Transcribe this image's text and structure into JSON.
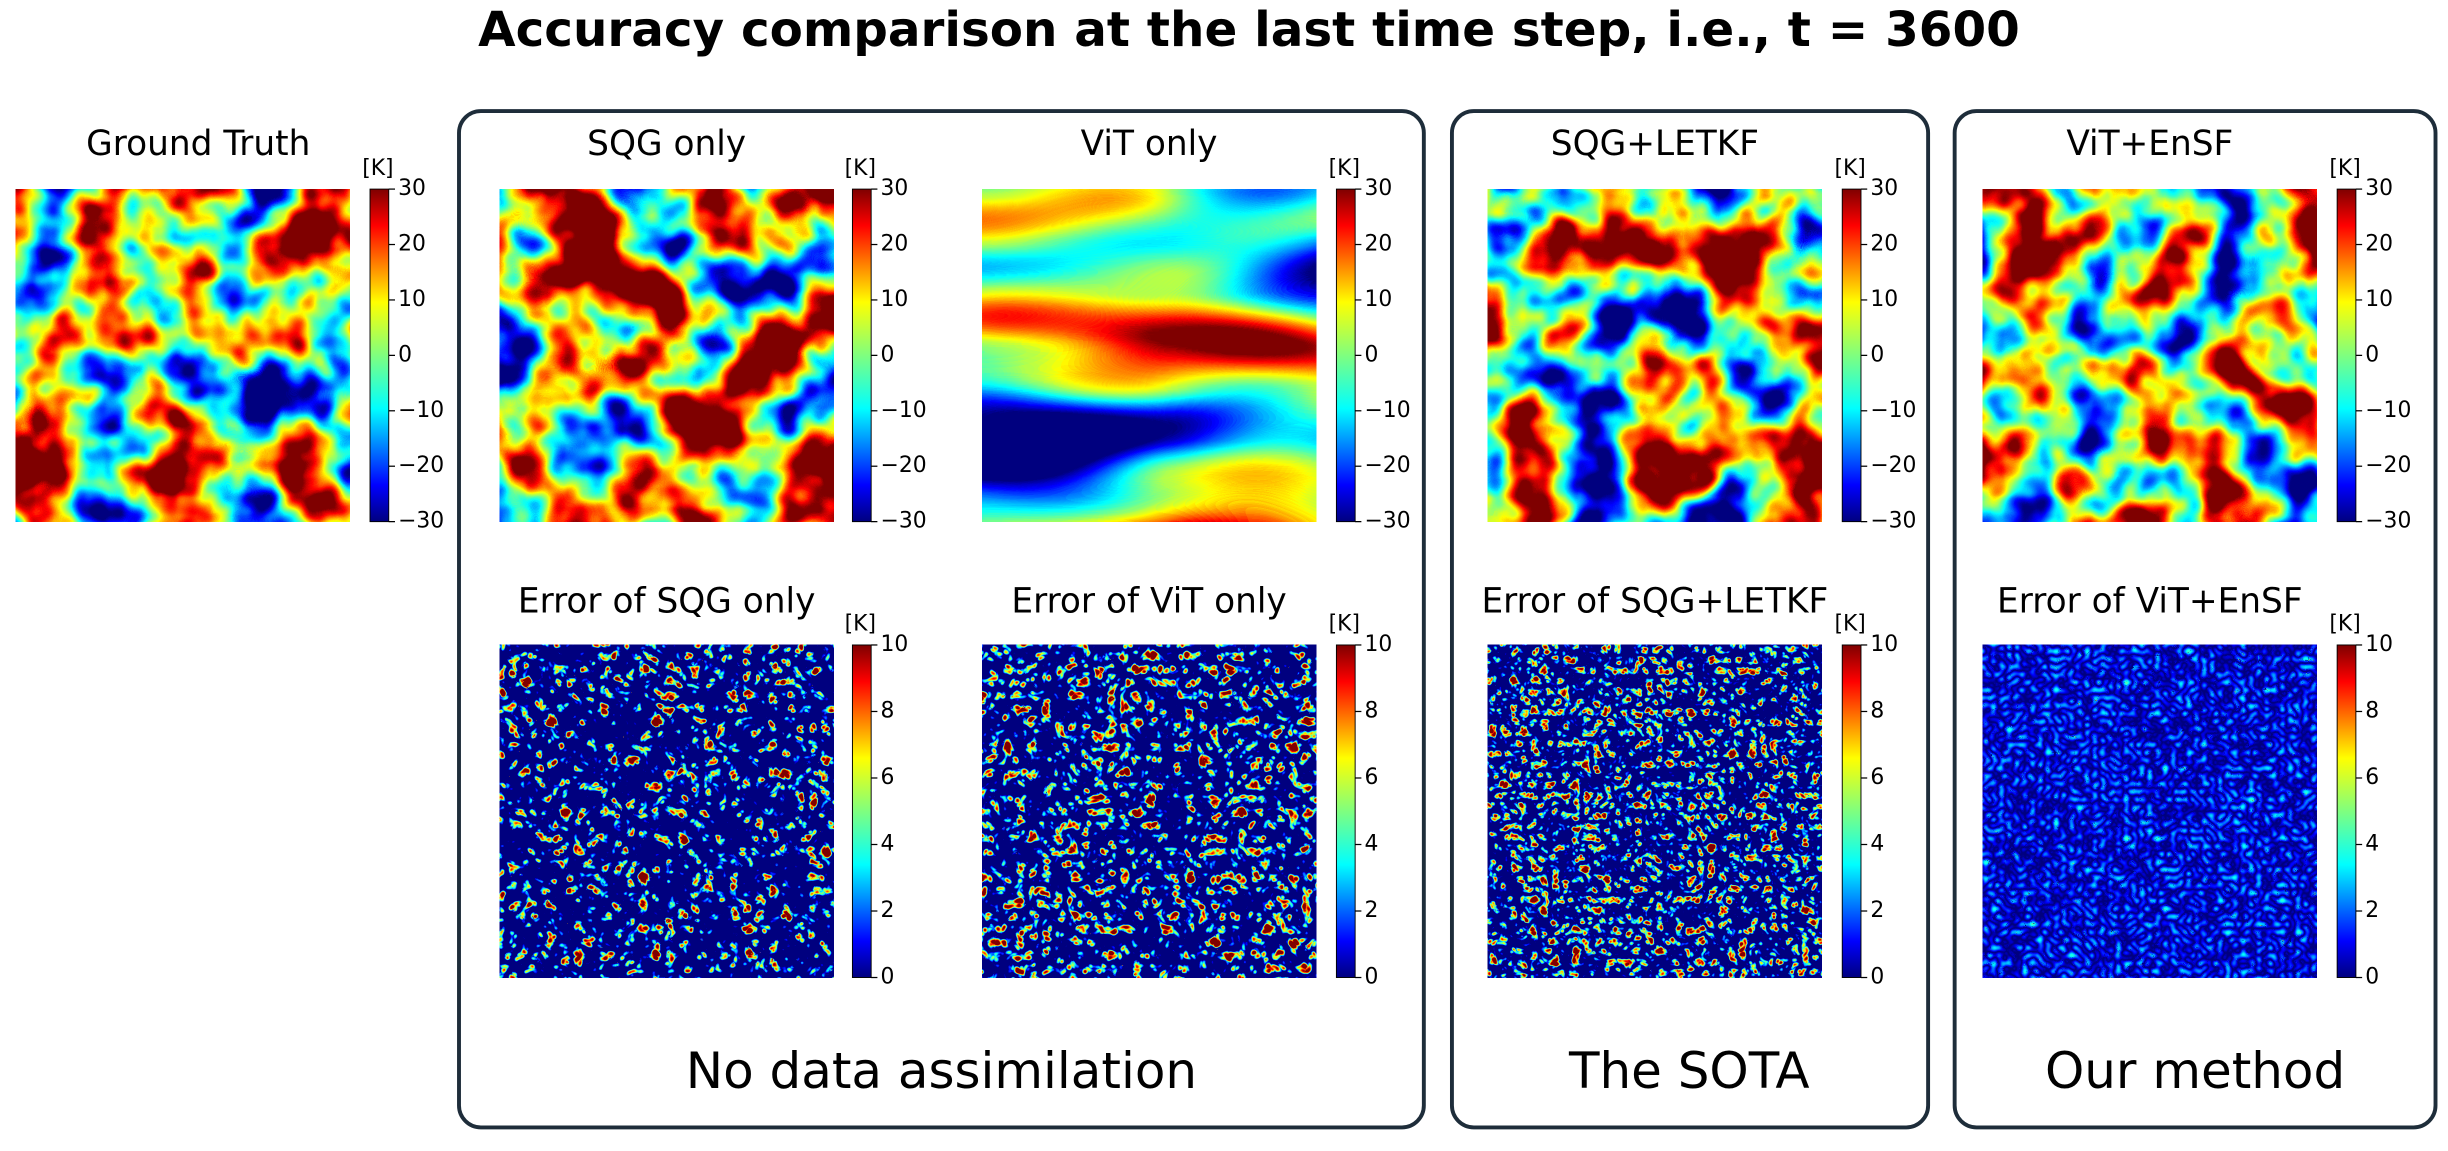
{
  "title": "Accuracy comparison at the last time step, i.e., t = 3600",
  "unit": "[K]",
  "field_range": [
    -30,
    30
  ],
  "field_ticks": [
    30,
    20,
    10,
    0,
    {
      "value": -10,
      "label": "−10"
    },
    {
      "value": -20,
      "label": "−20"
    },
    {
      "value": -30,
      "label": "−30"
    }
  ],
  "error_range": [
    0,
    10
  ],
  "error_ticks": [
    0,
    2,
    4,
    6,
    8,
    10
  ],
  "ground_truth": {
    "title": "Ground Truth"
  },
  "groups": [
    {
      "label": "No data assimilation",
      "panels": [
        {
          "title": "SQG only",
          "error_title": "Error of SQG only"
        },
        {
          "title": "ViT only",
          "error_title": "Error of ViT only"
        }
      ]
    },
    {
      "label": "The SOTA",
      "panels": [
        {
          "title": "SQG+LETKF",
          "error_title": "Error of SQG+LETKF"
        }
      ]
    },
    {
      "label": "Our method",
      "panels": [
        {
          "title": "ViT+EnSF",
          "error_title": "Error of ViT+EnSF"
        }
      ]
    }
  ]
}
